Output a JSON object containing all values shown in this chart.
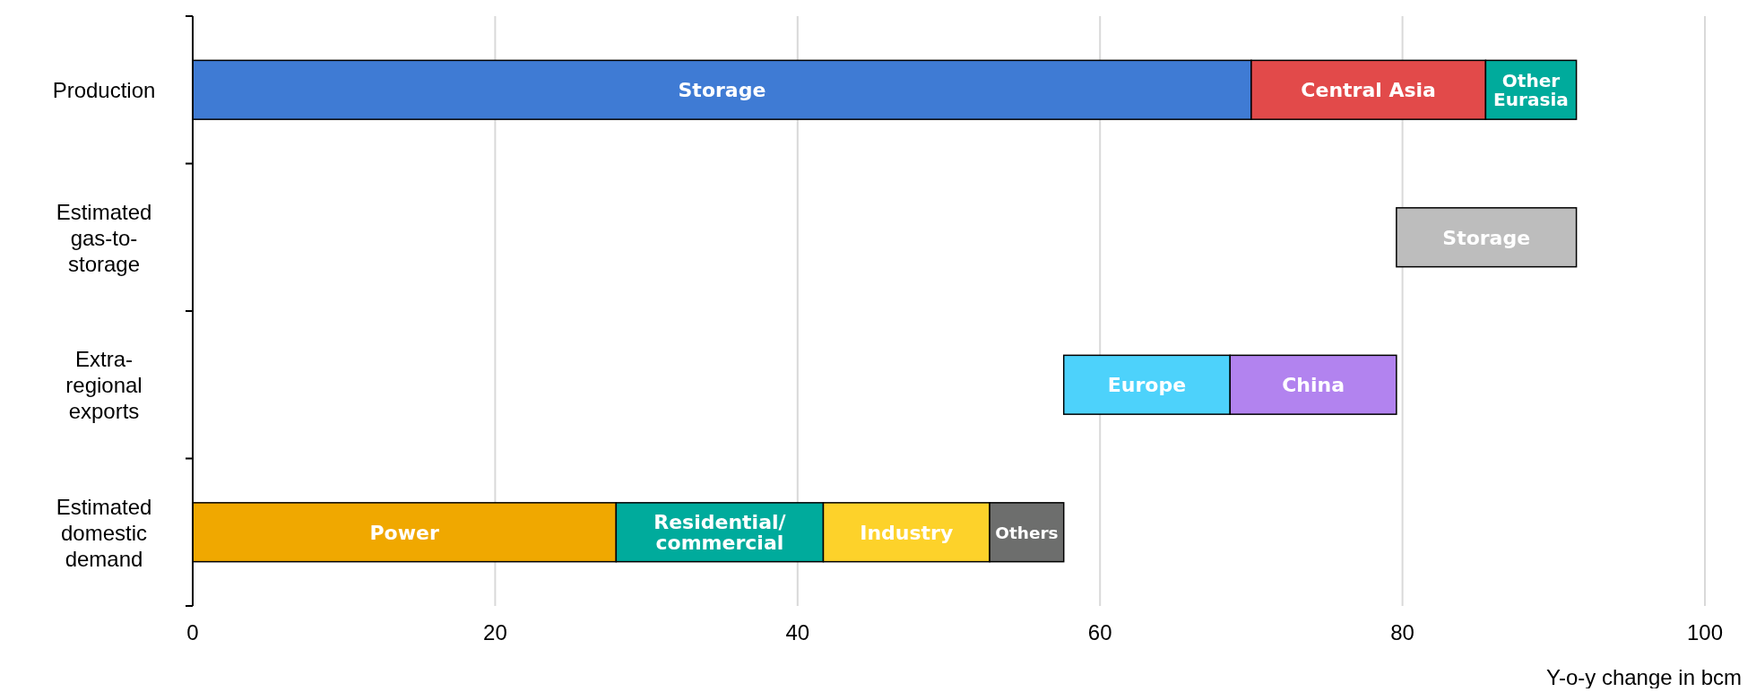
{
  "chart_data": {
    "type": "bar",
    "orientation": "horizontal",
    "categories": [
      "Production",
      "Estimated gas-to-storage",
      "Extra-regional exports",
      "Estimated domestic demand"
    ],
    "series": [
      {
        "name": "Storage",
        "color": "#3f7bd4",
        "values": [
          70,
          null,
          null,
          null
        ],
        "base": [
          0,
          null,
          null,
          null
        ]
      },
      {
        "name": "Central Asia",
        "color": "#e24a4a",
        "values": [
          15.5,
          null,
          null,
          null
        ],
        "base": [
          70,
          null,
          null,
          null
        ]
      },
      {
        "name": "Other Eurasia",
        "color": "#00ab9c",
        "values": [
          6,
          null,
          null,
          null
        ],
        "base": [
          85.5,
          null,
          null,
          null
        ]
      },
      {
        "name": "Storage",
        "color": "#bdbdbd",
        "values": [
          null,
          11.9,
          null,
          null
        ],
        "base": [
          null,
          79.6,
          null,
          null
        ]
      },
      {
        "name": "Europe",
        "color": "#4dd2fb",
        "values": [
          null,
          null,
          11,
          null
        ],
        "base": [
          null,
          null,
          57.6,
          null
        ]
      },
      {
        "name": "China",
        "color": "#b283ef",
        "values": [
          null,
          null,
          11,
          null
        ],
        "base": [
          null,
          null,
          68.6,
          null
        ]
      },
      {
        "name": "Power",
        "color": "#f0a800",
        "values": [
          null,
          null,
          null,
          28
        ],
        "base": [
          null,
          null,
          null,
          0
        ]
      },
      {
        "name": "Residential/ commercial",
        "color": "#00ab9c",
        "values": [
          null,
          null,
          null,
          13.7
        ],
        "base": [
          null,
          null,
          null,
          28
        ]
      },
      {
        "name": "Industry",
        "color": "#fdd22a",
        "values": [
          null,
          null,
          null,
          11
        ],
        "base": [
          null,
          null,
          null,
          41.7
        ]
      },
      {
        "name": "Others",
        "color": "#6d6e6d",
        "values": [
          null,
          null,
          null,
          4.9
        ],
        "base": [
          null,
          null,
          null,
          52.7
        ]
      }
    ],
    "xlim": [
      0,
      100
    ],
    "xticks": [
      0,
      20,
      40,
      60,
      80,
      100
    ],
    "xlabel": "Y-o-y change in bcm",
    "grid": "x"
  }
}
